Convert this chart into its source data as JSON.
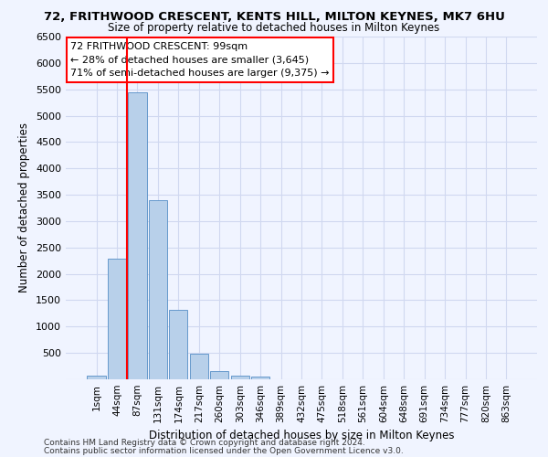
{
  "title": "72, FRITHWOOD CRESCENT, KENTS HILL, MILTON KEYNES, MK7 6HU",
  "subtitle": "Size of property relative to detached houses in Milton Keynes",
  "xlabel": "Distribution of detached houses by size in Milton Keynes",
  "ylabel": "Number of detached properties",
  "footnote1": "Contains HM Land Registry data © Crown copyright and database right 2024.",
  "footnote2": "Contains public sector information licensed under the Open Government Licence v3.0.",
  "bar_labels": [
    "1sqm",
    "44sqm",
    "87sqm",
    "131sqm",
    "174sqm",
    "217sqm",
    "260sqm",
    "303sqm",
    "346sqm",
    "389sqm",
    "432sqm",
    "475sqm",
    "518sqm",
    "561sqm",
    "604sqm",
    "648sqm",
    "691sqm",
    "734sqm",
    "777sqm",
    "820sqm",
    "863sqm"
  ],
  "bar_values": [
    70,
    2280,
    5450,
    3400,
    1310,
    480,
    155,
    75,
    55,
    0,
    0,
    0,
    0,
    0,
    0,
    0,
    0,
    0,
    0,
    0,
    0
  ],
  "bar_color": "#b8d0ea",
  "bar_edge_color": "#6699cc",
  "grid_color": "#d0d8f0",
  "background_color": "#f0f4ff",
  "vline_x": 2.0,
  "vline_color": "red",
  "annotation_text": "72 FRITHWOOD CRESCENT: 99sqm\n← 28% of detached houses are smaller (3,645)\n71% of semi-detached houses are larger (9,375) →",
  "annotation_box_color": "white",
  "annotation_box_edge": "red",
  "ylim": [
    0,
    6500
  ],
  "yticks": [
    0,
    500,
    1000,
    1500,
    2000,
    2500,
    3000,
    3500,
    4000,
    4500,
    5000,
    5500,
    6000,
    6500
  ]
}
